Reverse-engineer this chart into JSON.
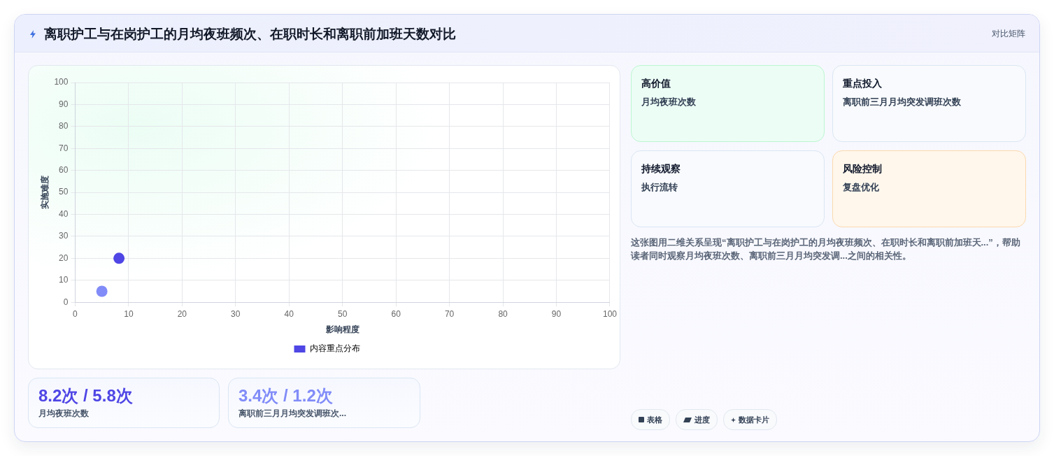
{
  "chart_data": {
    "type": "scatter",
    "title": "离职护工与在岗护工的月均夜班频次、在职时长和离职前加班天数对比",
    "subtitle": "对比矩阵",
    "xlabel": "影响程度",
    "ylabel": "实施难度",
    "series": [
      {
        "name": "内容重点分布",
        "color": "#4f46e5",
        "colors": [
          "#4f46e5",
          "#818cf8"
        ],
        "x": [
          8.2,
          5
        ],
        "values": [
          20,
          5
        ]
      }
    ],
    "xlim": [
      0,
      100
    ],
    "ylim": [
      0,
      100
    ],
    "xticks": [
      0,
      10,
      20,
      30,
      40,
      50,
      60,
      70,
      80,
      90,
      100
    ],
    "yticks": [
      0,
      10,
      20,
      30,
      40,
      50,
      60,
      70,
      80,
      90,
      100
    ],
    "grid": true,
    "legend": "bottom",
    "marker": "circle",
    "annotations": [
      "高价值",
      "月均夜班次数",
      "重点投入",
      "离职前三月月均突发调班次数",
      "持续观察",
      "执行流转",
      "风险控制",
      "复盘优化",
      "这张图用二维关系呈现“离职护工与在岗护工的月均夜班频次、在职时长和离职前加班天...”，帮助读者同时观察月均夜班次数、离职前三月月均突发调...之间的相关性。",
      "8.2次 / 5.8次",
      "月均夜班次数",
      "3.4次 / 1.2次",
      "离职前三月月均突发调班次...",
      "表格",
      "进度",
      "数据卡片"
    ]
  }
}
